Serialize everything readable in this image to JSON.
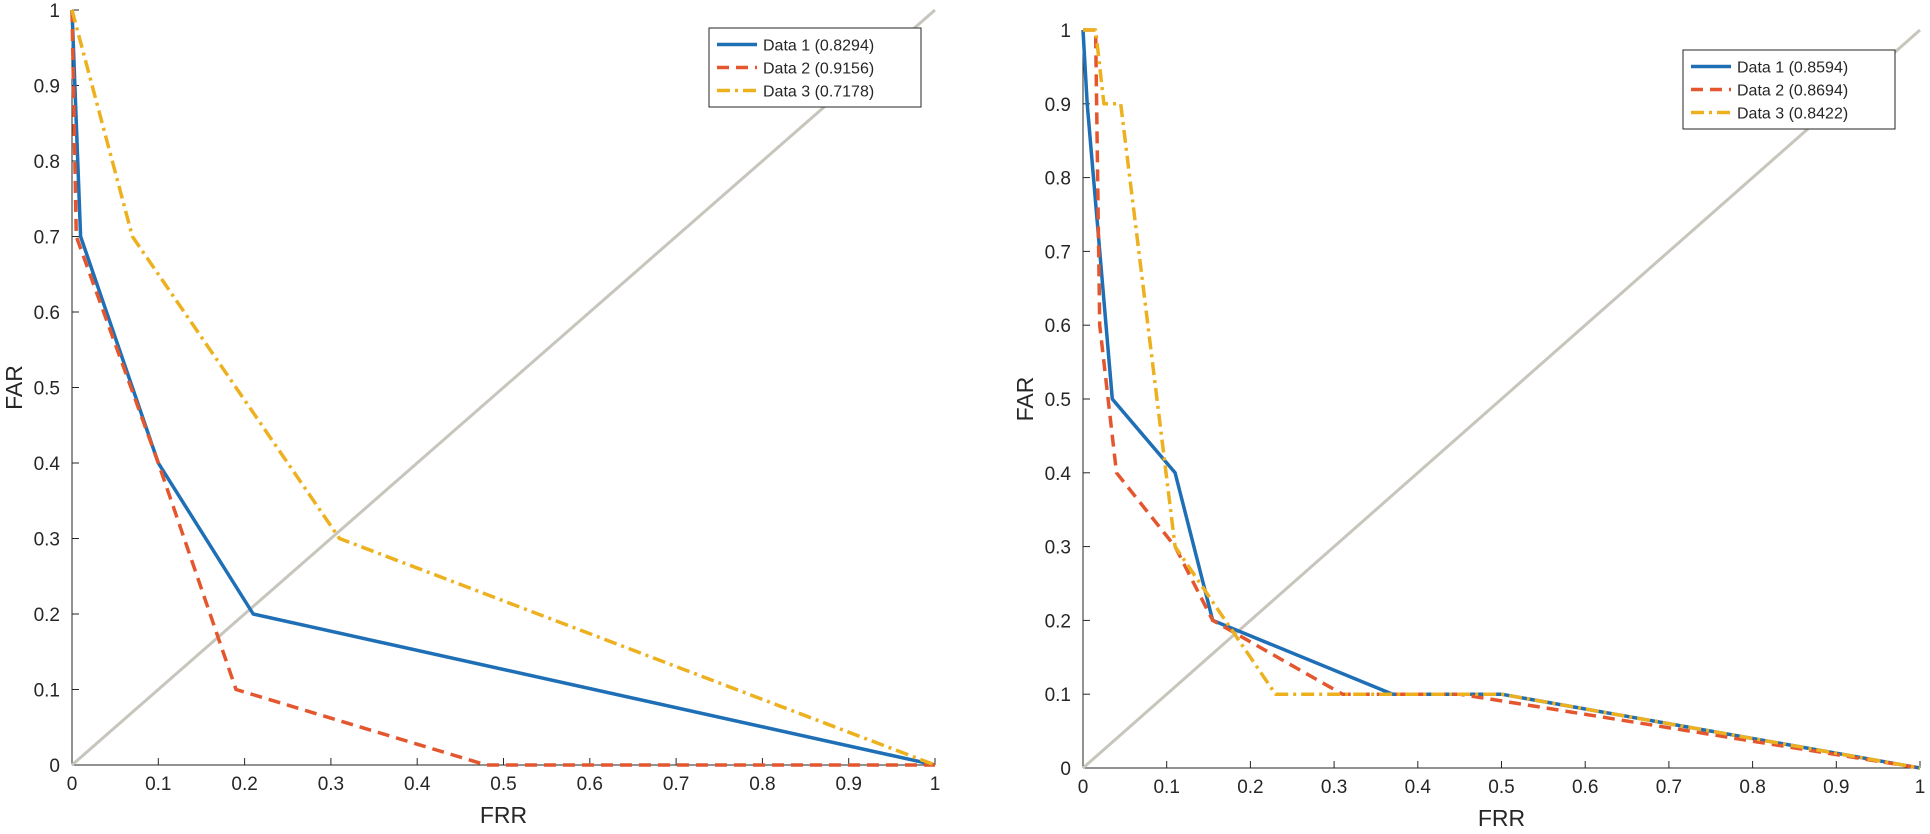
{
  "chart_data": [
    {
      "type": "line",
      "xlabel": "FRR",
      "ylabel": "FAR",
      "xlim": [
        0,
        1
      ],
      "ylim": [
        0,
        1
      ],
      "xticks": [
        "0",
        "0.1",
        "0.2",
        "0.3",
        "0.4",
        "0.5",
        "0.6",
        "0.7",
        "0.8",
        "0.9",
        "1"
      ],
      "yticks": [
        "0",
        "0.1",
        "0.2",
        "0.3",
        "0.4",
        "0.5",
        "0.6",
        "0.7",
        "0.8",
        "0.9",
        "1"
      ],
      "grid": false,
      "legend_position": "top-right",
      "reference_line": {
        "x": [
          0,
          1
        ],
        "y": [
          0,
          1
        ],
        "color": "#c8c5bd"
      },
      "series": [
        {
          "name": "Data 1 (0.8294)",
          "color": "#1f6fb6",
          "style": "solid",
          "x": [
            0,
            0.01,
            0.1,
            0.21,
            1
          ],
          "y": [
            1,
            0.7,
            0.4,
            0.2,
            0
          ]
        },
        {
          "name": "Data 2 (0.9156)",
          "color": "#e4572e",
          "style": "dashed",
          "x": [
            0,
            0.005,
            0.1,
            0.19,
            0.48,
            1
          ],
          "y": [
            1,
            0.7,
            0.4,
            0.1,
            0,
            0
          ]
        },
        {
          "name": "Data 3 (0.7178)",
          "color": "#edb120",
          "style": "dashdot",
          "x": [
            0,
            0.07,
            0.31,
            1
          ],
          "y": [
            1,
            0.7,
            0.3,
            0
          ]
        }
      ]
    },
    {
      "type": "line",
      "xlabel": "FRR",
      "ylabel": "FAR",
      "xlim": [
        0,
        1
      ],
      "ylim": [
        0,
        1
      ],
      "xticks": [
        "0",
        "0.1",
        "0.2",
        "0.3",
        "0.4",
        "0.5",
        "0.6",
        "0.7",
        "0.8",
        "0.9",
        "1"
      ],
      "yticks": [
        "0",
        "0.1",
        "0.2",
        "0.3",
        "0.4",
        "0.5",
        "0.6",
        "0.7",
        "0.8",
        "0.9",
        "1"
      ],
      "grid": false,
      "legend_position": "top-right",
      "reference_line": {
        "x": [
          0,
          1
        ],
        "y": [
          0,
          1
        ],
        "color": "#c8c5bd"
      },
      "series": [
        {
          "name": "Data 1 (0.8594)",
          "color": "#1f6fb6",
          "style": "solid",
          "x": [
            0,
            0.005,
            0.035,
            0.11,
            0.155,
            0.37,
            0.5,
            1
          ],
          "y": [
            1,
            0.9,
            0.5,
            0.4,
            0.2,
            0.1,
            0.1,
            0
          ]
        },
        {
          "name": "Data 2 (0.8694)",
          "color": "#e4572e",
          "style": "dashed",
          "x": [
            0,
            0.015,
            0.02,
            0.04,
            0.11,
            0.155,
            0.31,
            0.45,
            1
          ],
          "y": [
            1,
            1,
            0.6,
            0.4,
            0.3,
            0.2,
            0.1,
            0.1,
            0
          ]
        },
        {
          "name": "Data 3 (0.8422)",
          "color": "#edb120",
          "style": "dashdot",
          "x": [
            0,
            0.015,
            0.025,
            0.045,
            0.11,
            0.23,
            0.5,
            1
          ],
          "y": [
            1,
            1,
            0.9,
            0.9,
            0.3,
            0.1,
            0.1,
            0
          ]
        }
      ]
    }
  ]
}
